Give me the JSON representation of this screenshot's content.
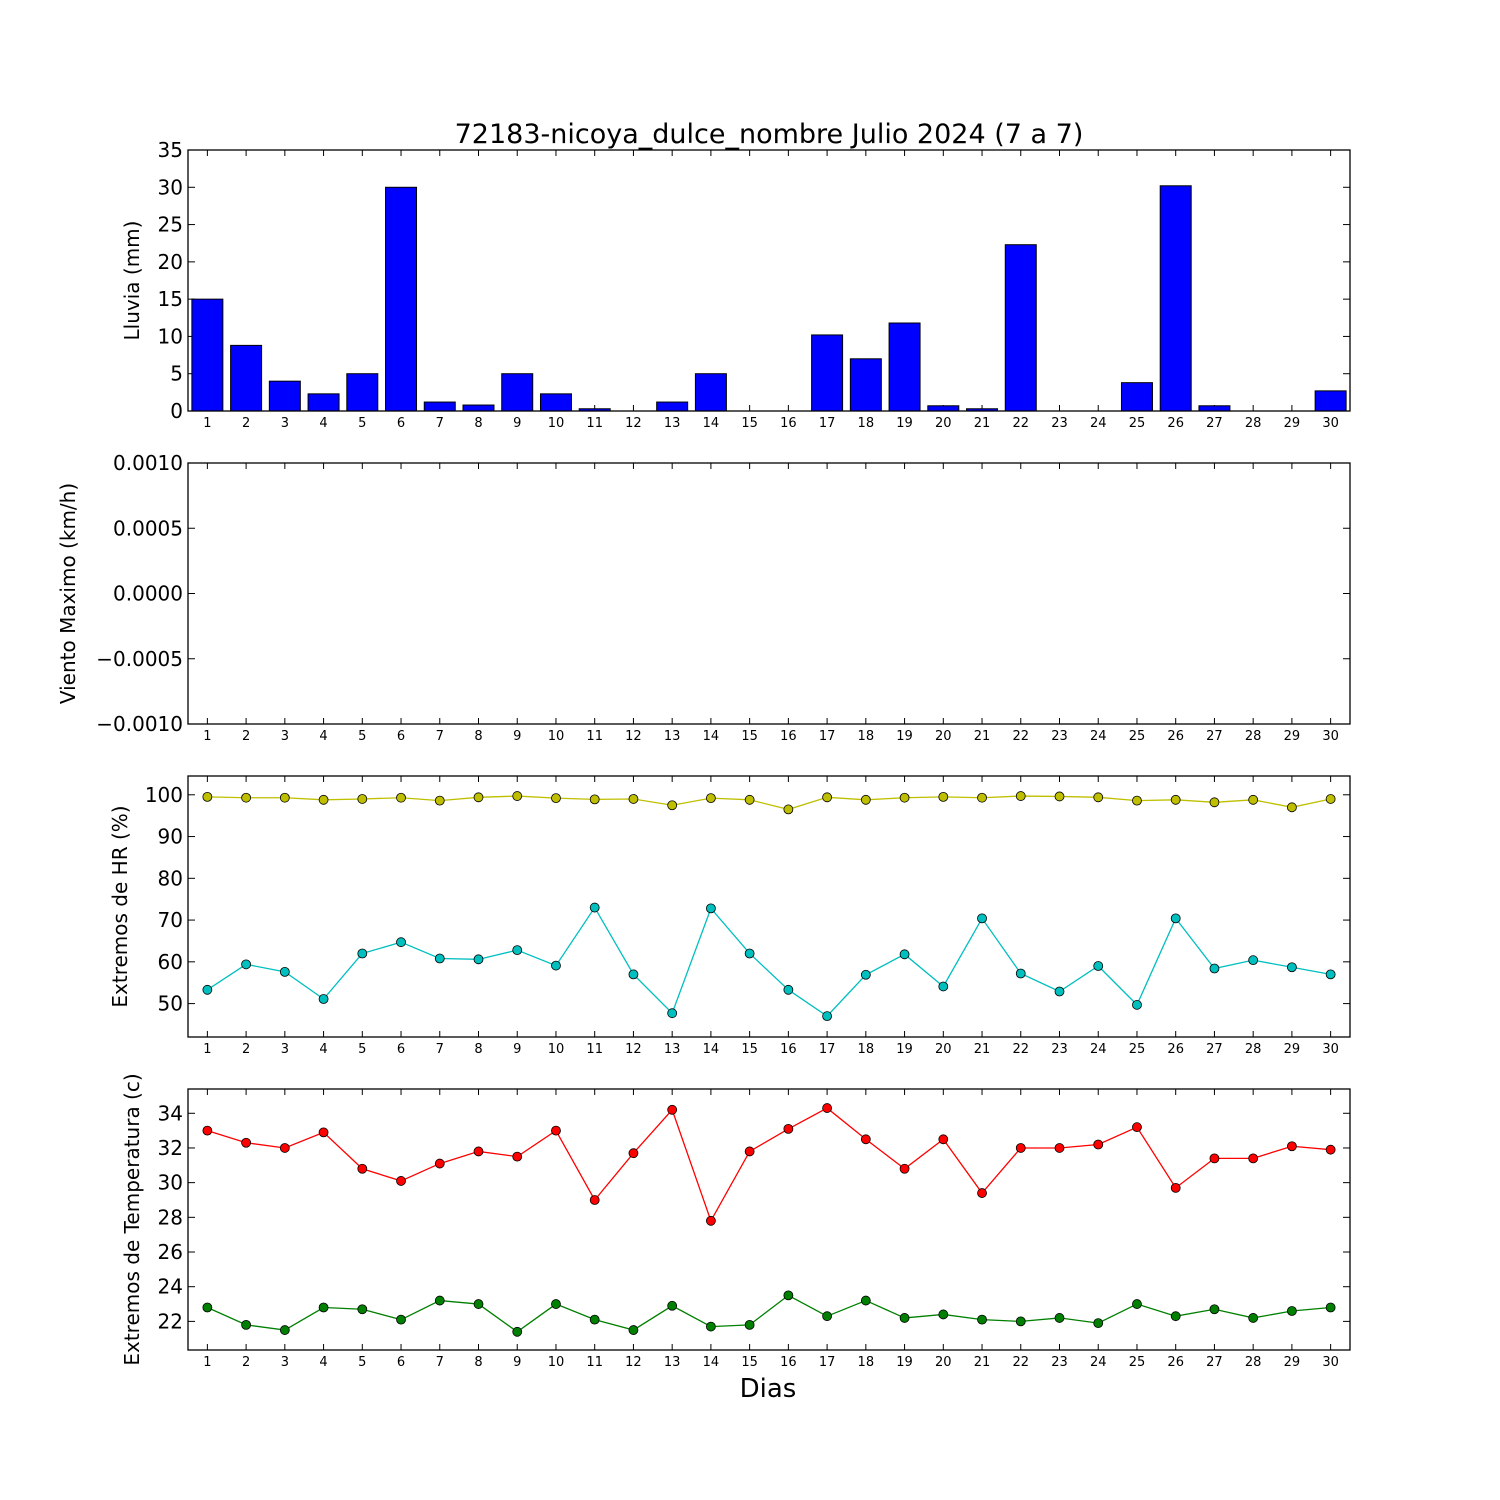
{
  "chart_data": {
    "title": "72183-nicoya_dulce_nombre Julio 2024  (7 a 7)",
    "xlabel": "Dias",
    "x": [
      1,
      2,
      3,
      4,
      5,
      6,
      7,
      8,
      9,
      10,
      11,
      12,
      13,
      14,
      15,
      16,
      17,
      18,
      19,
      20,
      21,
      22,
      23,
      24,
      25,
      26,
      27,
      28,
      29,
      30
    ],
    "panels": [
      {
        "type": "bar",
        "ylabel": "Lluvia (mm)",
        "ylim": [
          0,
          35
        ],
        "yticks": [
          "0",
          "5",
          "10",
          "15",
          "20",
          "25",
          "30",
          "35"
        ],
        "color": "#0000ff",
        "series": [
          {
            "values": [
              15.0,
              8.8,
              4.0,
              2.3,
              5.0,
              30.0,
              1.2,
              0.8,
              5.0,
              2.3,
              0.3,
              0.0,
              1.2,
              5.0,
              0.0,
              0.0,
              10.2,
              7.0,
              11.8,
              0.7,
              0.3,
              22.3,
              0.0,
              0.0,
              3.8,
              30.2,
              0.7,
              0.0,
              0.0,
              2.7
            ]
          }
        ]
      },
      {
        "type": "line",
        "ylabel": "Viento Maximo (km/h)",
        "ylim": [
          -0.001,
          0.001
        ],
        "yticks": [
          "0.0010",
          "0.0005",
          "0.0000",
          "−0.0005",
          "−0.0010"
        ],
        "series": []
      },
      {
        "type": "line",
        "ylabel": "Extremos de HR (%)",
        "ylim": [
          42,
          104.5
        ],
        "yticks": [
          "50",
          "60",
          "70",
          "80",
          "90",
          "100"
        ],
        "series": [
          {
            "color": "#bfbf00",
            "values": [
              99.5,
              99.3,
              99.3,
              98.8,
              99.0,
              99.3,
              98.6,
              99.4,
              99.7,
              99.2,
              98.9,
              99.0,
              97.5,
              99.2,
              98.8,
              96.5,
              99.4,
              98.8,
              99.3,
              99.5,
              99.3,
              99.7,
              99.6,
              99.4,
              98.6,
              98.8,
              98.2,
              98.8,
              97.0,
              99.0
            ]
          },
          {
            "color": "#00bfbf",
            "values": [
              53.3,
              59.4,
              57.6,
              51.1,
              62.0,
              64.7,
              60.8,
              60.6,
              62.8,
              59.1,
              73.0,
              57.0,
              47.7,
              72.8,
              62.0,
              53.3,
              47.0,
              56.9,
              61.8,
              54.1,
              70.4,
              57.2,
              52.9,
              59.0,
              49.7,
              70.4,
              58.4,
              60.4,
              58.7,
              57.0
            ]
          }
        ]
      },
      {
        "type": "line",
        "ylabel": "Extremos de Temperatura (c)",
        "ylim": [
          20.35,
          35.4
        ],
        "yticks": [
          "22",
          "24",
          "26",
          "28",
          "30",
          "32",
          "34"
        ],
        "series": [
          {
            "color": "#ff0000",
            "values": [
              33.0,
              32.3,
              32.0,
              32.9,
              30.8,
              30.1,
              31.1,
              31.8,
              31.5,
              33.0,
              29.0,
              31.7,
              34.2,
              27.8,
              31.8,
              33.1,
              34.3,
              32.5,
              30.8,
              32.5,
              29.4,
              32.0,
              32.0,
              32.2,
              33.2,
              29.7,
              31.4,
              31.4,
              32.1,
              31.9
            ]
          },
          {
            "color": "#008000",
            "values": [
              22.8,
              21.8,
              21.5,
              22.8,
              22.7,
              22.1,
              23.2,
              23.0,
              21.4,
              23.0,
              22.1,
              21.5,
              22.9,
              21.7,
              21.8,
              23.5,
              22.3,
              23.2,
              22.2,
              22.4,
              22.1,
              22.0,
              22.2,
              21.9,
              23.0,
              22.3,
              22.7,
              22.2,
              22.6,
              22.8
            ]
          }
        ]
      }
    ]
  }
}
